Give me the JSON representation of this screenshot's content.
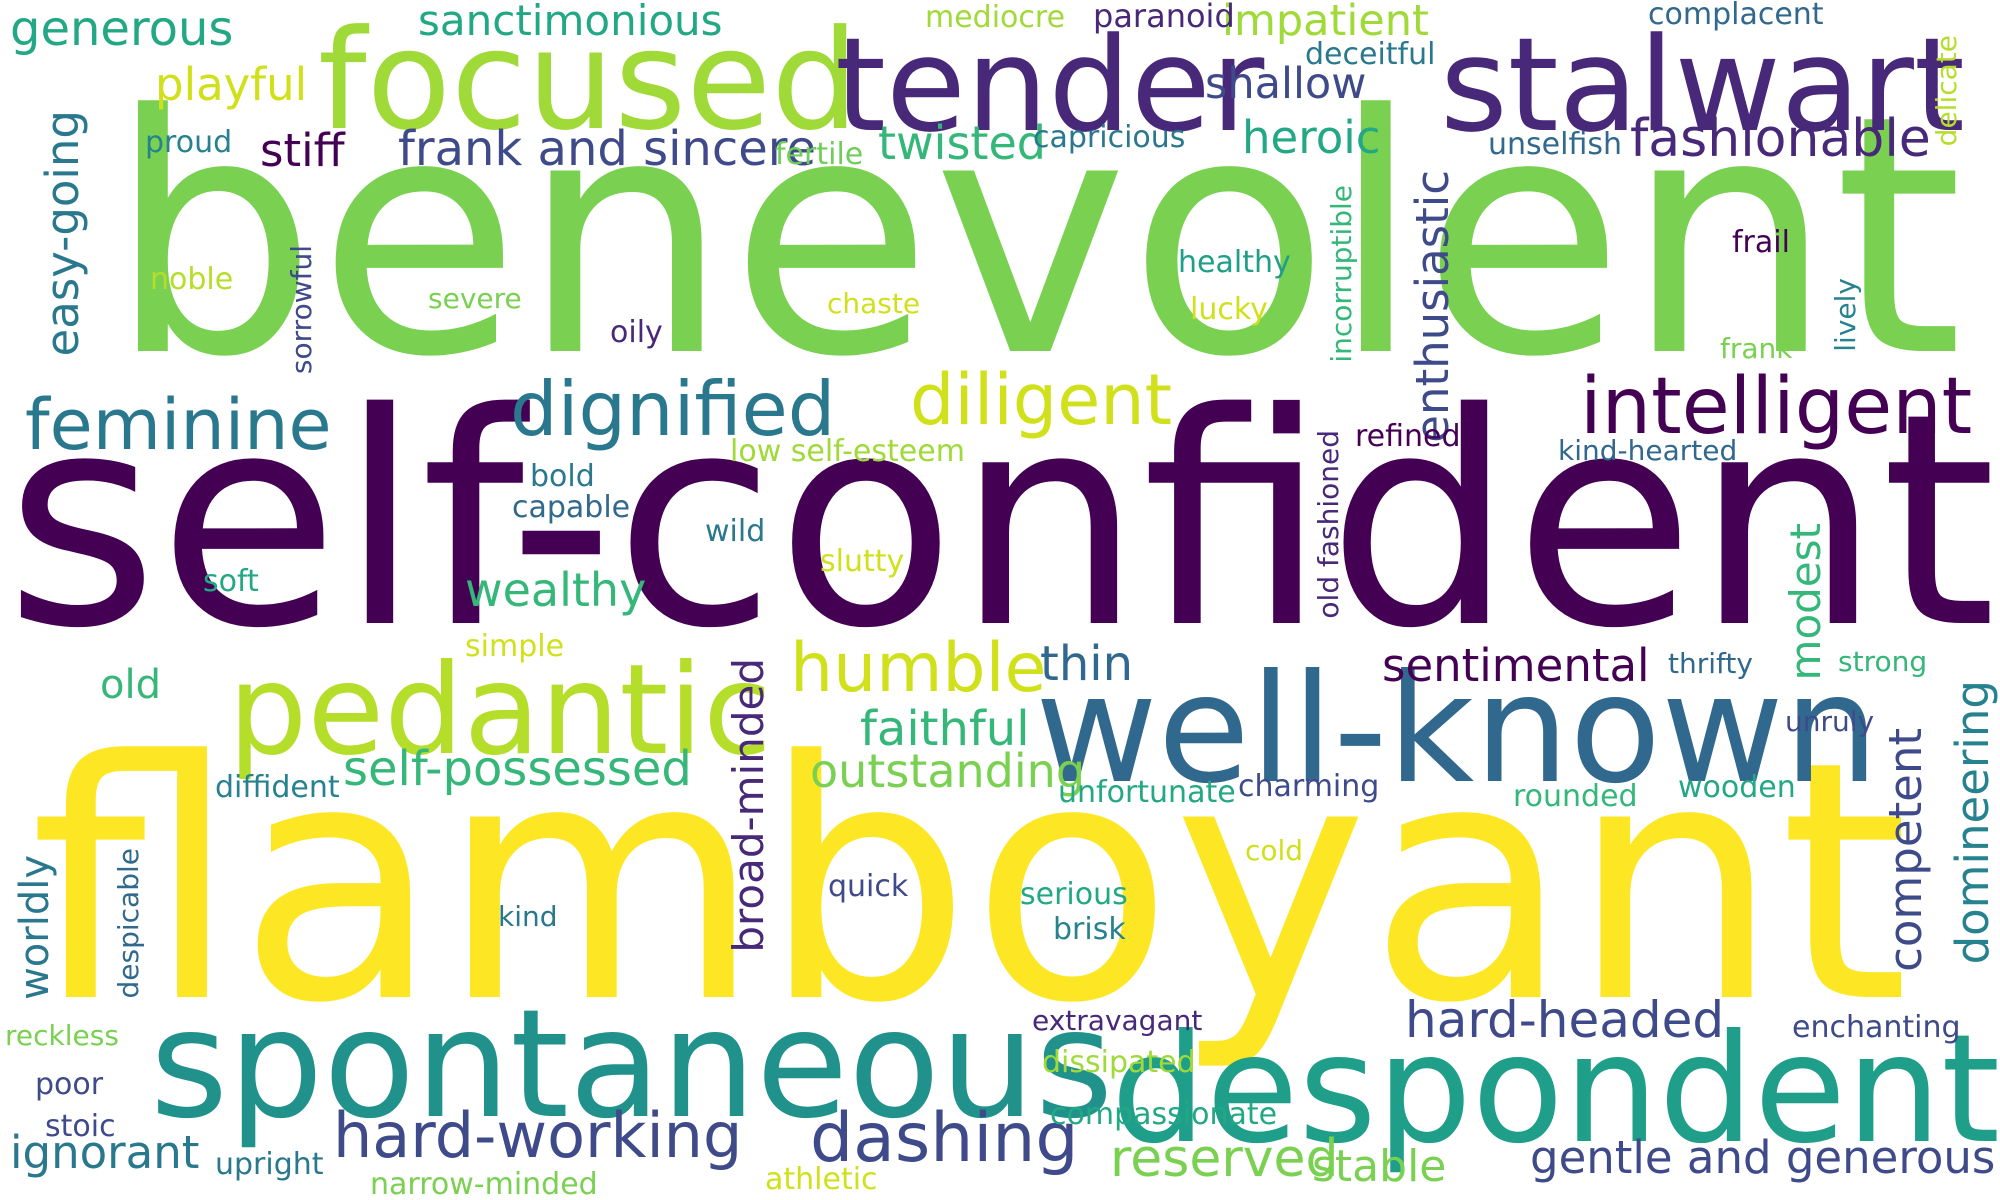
{
  "palette": {
    "dark_purple": "#440154",
    "purple": "#482878",
    "indigo": "#3e4a89",
    "slate_blue": "#31688e",
    "steel_teal": "#26828e",
    "teal": "#1f9e89",
    "sea_green": "#35b779",
    "green": "#6ece58",
    "lime": "#b5de2b",
    "yellow": "#fde725"
  },
  "words": [
    {
      "text": "benevolent",
      "color": "#7ad151"
    },
    {
      "text": "self-confident",
      "color": "#440154"
    },
    {
      "text": "flamboyant",
      "color": "#fde725"
    },
    {
      "text": "spontaneous",
      "color": "#21918c"
    },
    {
      "text": "well-known",
      "color": "#31688e"
    },
    {
      "text": "despondent",
      "color": "#1f9e89"
    },
    {
      "text": "focused",
      "color": "#a0da39"
    },
    {
      "text": "tender",
      "color": "#482878"
    },
    {
      "text": "stalwart",
      "color": "#482878"
    },
    {
      "text": "pedantic",
      "color": "#b5de2b"
    },
    {
      "text": "intelligent",
      "color": "#440154"
    },
    {
      "text": "dignified",
      "color": "#2a788e"
    },
    {
      "text": "feminine",
      "color": "#2a788e"
    },
    {
      "text": "diligent",
      "color": "#d0e11c"
    },
    {
      "text": "humble",
      "color": "#d0e11c"
    },
    {
      "text": "hard-working",
      "color": "#3e4a89"
    },
    {
      "text": "dashing",
      "color": "#3e4a89"
    },
    {
      "text": "hard-headed",
      "color": "#3e4a89"
    },
    {
      "text": "gentle and generous",
      "color": "#3e4a89"
    },
    {
      "text": "reserved",
      "color": "#7ad151"
    },
    {
      "text": "sentimental",
      "color": "#440154"
    },
    {
      "text": "fashionable",
      "color": "#482878"
    },
    {
      "text": "frank and sincere",
      "color": "#3e4a89"
    },
    {
      "text": "self-possessed",
      "color": "#35b779"
    },
    {
      "text": "faithful",
      "color": "#35b779"
    },
    {
      "text": "outstanding",
      "color": "#7ad151"
    },
    {
      "text": "wealthy",
      "color": "#35b779"
    },
    {
      "text": "heroic",
      "color": "#22a884"
    },
    {
      "text": "twisted",
      "color": "#35b779"
    },
    {
      "text": "generous",
      "color": "#22a884"
    },
    {
      "text": "sanctimonious",
      "color": "#22a884"
    },
    {
      "text": "impatient",
      "color": "#a0da39"
    },
    {
      "text": "shallow",
      "color": "#3e4a89"
    },
    {
      "text": "playful",
      "color": "#d0e11c"
    },
    {
      "text": "stiff",
      "color": "#440154"
    },
    {
      "text": "thin",
      "color": "#31688e"
    },
    {
      "text": "ignorant",
      "color": "#2a788e"
    },
    {
      "text": "stable",
      "color": "#7ad151"
    },
    {
      "text": "easy-going",
      "color": "#2a788e",
      "vertical": true
    },
    {
      "text": "enthusiastic",
      "color": "#3e4a89",
      "vertical": true
    },
    {
      "text": "broad-minded",
      "color": "#482878",
      "vertical": true
    },
    {
      "text": "competent",
      "color": "#3e4a89",
      "vertical": true
    },
    {
      "text": "domineering",
      "color": "#26828e",
      "vertical": true
    },
    {
      "text": "modest",
      "color": "#35b779",
      "vertical": true
    },
    {
      "text": "worldly",
      "color": "#2a788e",
      "vertical": true
    },
    {
      "text": "old",
      "color": "#35b779"
    },
    {
      "text": "mediocre",
      "color": "#a0da39"
    },
    {
      "text": "paranoid",
      "color": "#482878"
    },
    {
      "text": "complacent",
      "color": "#31688e"
    },
    {
      "text": "deceitful",
      "color": "#2a788e"
    },
    {
      "text": "delicate",
      "color": "#b5de2b",
      "vertical": true
    },
    {
      "text": "proud",
      "color": "#26828e"
    },
    {
      "text": "fertile",
      "color": "#6ece58"
    },
    {
      "text": "capricious",
      "color": "#2a788e"
    },
    {
      "text": "unselfish",
      "color": "#31688e"
    },
    {
      "text": "noble",
      "color": "#b5de2b"
    },
    {
      "text": "sorrowful",
      "color": "#3e4a89",
      "vertical": true
    },
    {
      "text": "severe",
      "color": "#7ad151"
    },
    {
      "text": "chaste",
      "color": "#d0e11c"
    },
    {
      "text": "healthy",
      "color": "#1f9e89"
    },
    {
      "text": "lucky",
      "color": "#d0e11c"
    },
    {
      "text": "incorruptible",
      "color": "#35b779",
      "vertical": true
    },
    {
      "text": "frail",
      "color": "#440154"
    },
    {
      "text": "lively",
      "color": "#26828e",
      "vertical": true
    },
    {
      "text": "frank",
      "color": "#7ad151"
    },
    {
      "text": "oily",
      "color": "#482878"
    },
    {
      "text": "low self-esteem",
      "color": "#a0da39"
    },
    {
      "text": "refined",
      "color": "#440154"
    },
    {
      "text": "kind-hearted",
      "color": "#31688e"
    },
    {
      "text": "old fashioned",
      "color": "#482878",
      "vertical": true
    },
    {
      "text": "bold",
      "color": "#2a788e"
    },
    {
      "text": "capable",
      "color": "#31688e"
    },
    {
      "text": "wild",
      "color": "#2a788e"
    },
    {
      "text": "slutty",
      "color": "#d0e11c"
    },
    {
      "text": "soft",
      "color": "#22a884"
    },
    {
      "text": "simple",
      "color": "#d0e11c"
    },
    {
      "text": "thrifty",
      "color": "#31688e"
    },
    {
      "text": "strong",
      "color": "#35b779"
    },
    {
      "text": "unruly",
      "color": "#3e4a89"
    },
    {
      "text": "diffident",
      "color": "#26828e"
    },
    {
      "text": "unfortunate",
      "color": "#22a884"
    },
    {
      "text": "charming",
      "color": "#3e4a89"
    },
    {
      "text": "rounded",
      "color": "#35b779"
    },
    {
      "text": "wooden",
      "color": "#22a884"
    },
    {
      "text": "cold",
      "color": "#d0e11c"
    },
    {
      "text": "despicable",
      "color": "#31688e",
      "vertical": true
    },
    {
      "text": "quick",
      "color": "#3e4a89"
    },
    {
      "text": "kind",
      "color": "#2a788e"
    },
    {
      "text": "serious",
      "color": "#22a884"
    },
    {
      "text": "brisk",
      "color": "#26828e"
    },
    {
      "text": "reckless",
      "color": "#7ad151"
    },
    {
      "text": "extravagant",
      "color": "#482878"
    },
    {
      "text": "enchanting",
      "color": "#3e4a89"
    },
    {
      "text": "dissipated",
      "color": "#a0da39"
    },
    {
      "text": "poor",
      "color": "#3e4a89"
    },
    {
      "text": "compassionate",
      "color": "#22a884"
    },
    {
      "text": "stoic",
      "color": "#3e4a89"
    },
    {
      "text": "upright",
      "color": "#2a788e"
    },
    {
      "text": "narrow-minded",
      "color": "#7ad151"
    },
    {
      "text": "athletic",
      "color": "#d0e11c"
    }
  ]
}
